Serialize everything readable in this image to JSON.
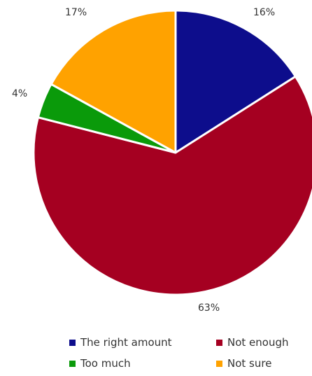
{
  "chart_data": {
    "type": "pie",
    "title": "",
    "slices": [
      {
        "label": "The right amount",
        "value": 16,
        "value_label": "16%",
        "color": "#0d0d8c"
      },
      {
        "label": "Not enough",
        "value": 63,
        "value_label": "63%",
        "color": "#a50021"
      },
      {
        "label": "Too much",
        "value": 4,
        "value_label": "4%",
        "color": "#0a9a0a"
      },
      {
        "label": "Not sure",
        "value": 17,
        "value_label": "17%",
        "color": "#ffa200"
      }
    ],
    "start_angle_deg": 0,
    "direction": "clockwise",
    "legend_position": "bottom"
  }
}
